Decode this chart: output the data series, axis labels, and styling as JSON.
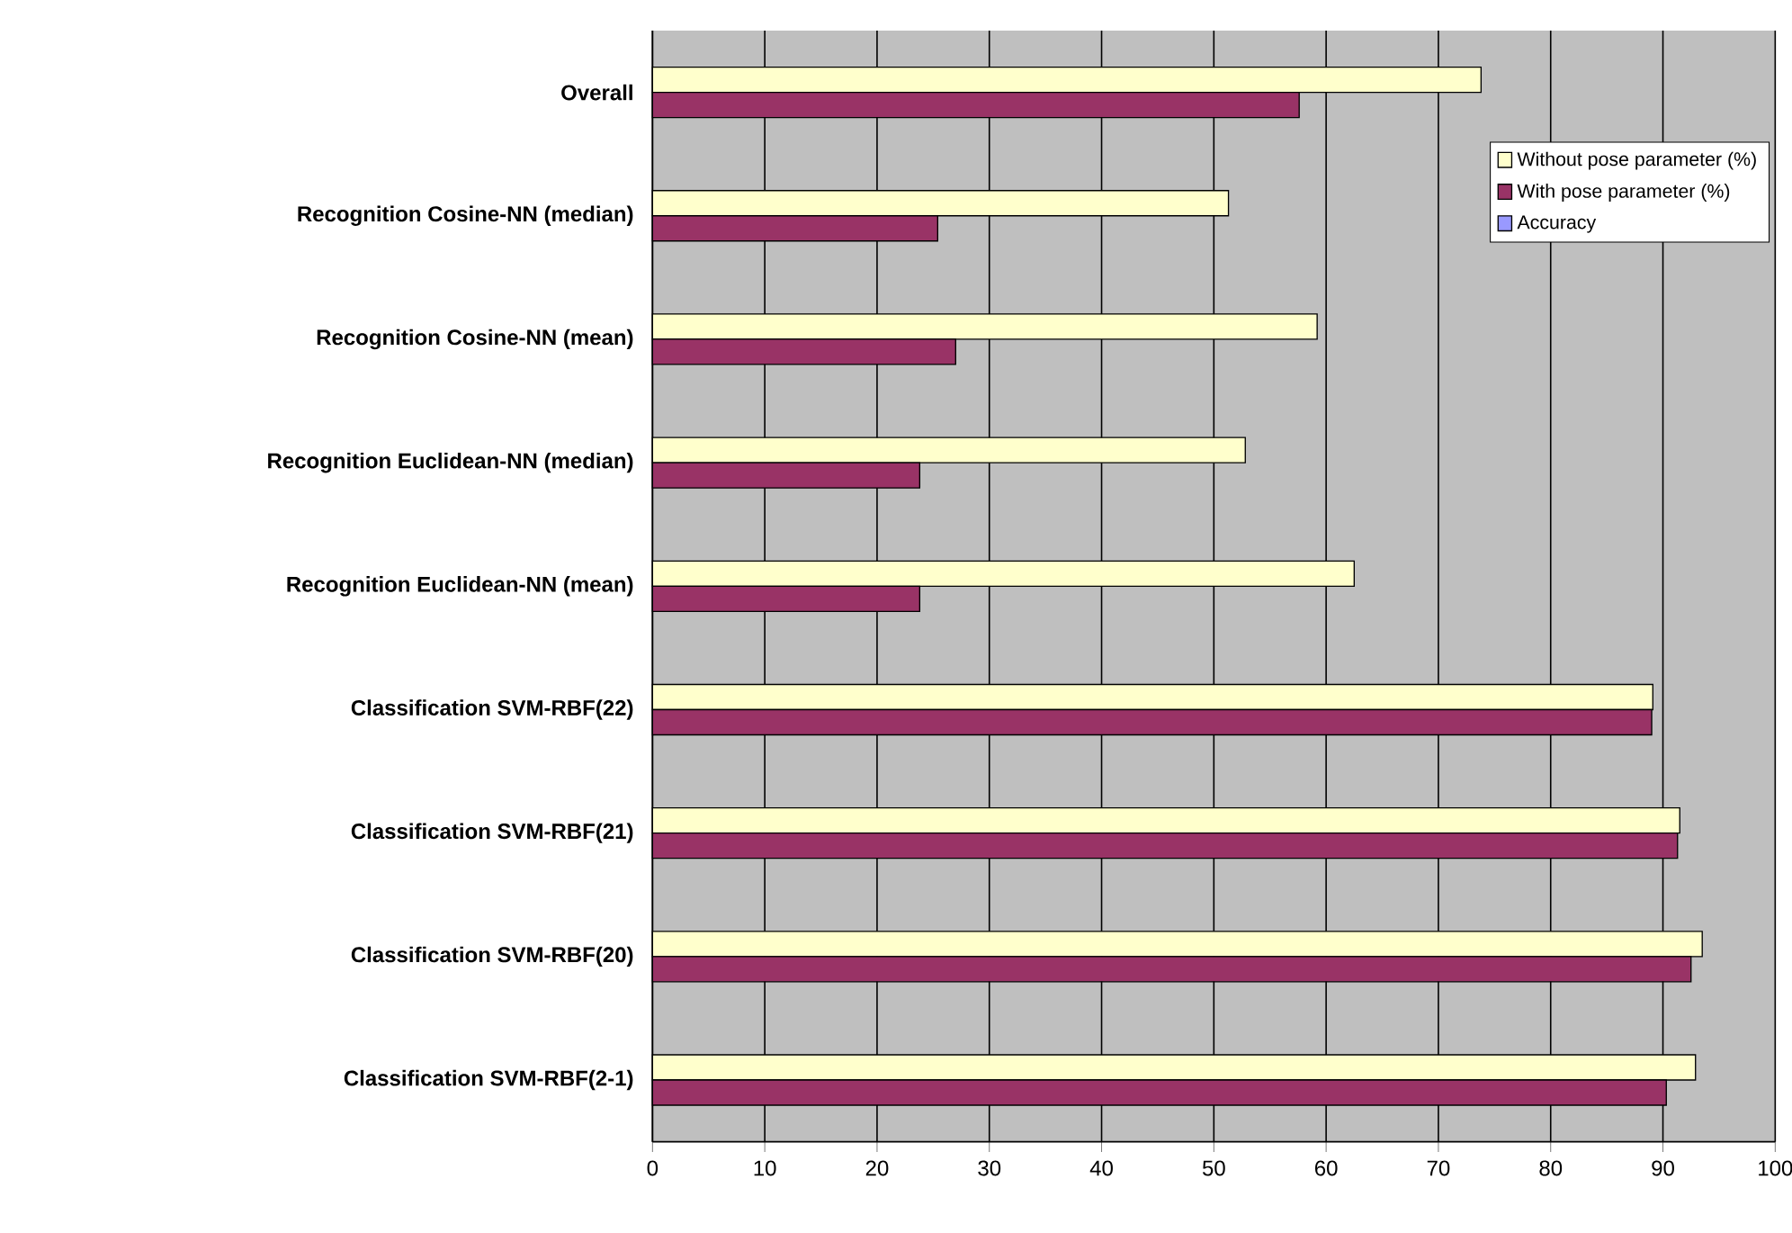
{
  "chart_data": {
    "type": "bar",
    "orientation": "horizontal",
    "categories": [
      "Overall",
      "Recognition Cosine-NN (median)",
      "Recognition Cosine-NN (mean)",
      "Recognition Euclidean-NN (median)",
      "Recognition Euclidean-NN (mean)",
      "Classification SVM-RBF(22)",
      "Classification SVM-RBF(21)",
      "Classification SVM-RBF(20)",
      "Classification SVM-RBF(2-1)"
    ],
    "series": [
      {
        "name": "Without pose parameter (%)",
        "color": "#ffffcc",
        "values": [
          73.8,
          51.3,
          59.2,
          52.8,
          62.5,
          89.1,
          91.5,
          93.5,
          92.9
        ]
      },
      {
        "name": "With pose parameter (%)",
        "color": "#993366",
        "values": [
          57.6,
          25.4,
          27.0,
          23.8,
          23.8,
          89.0,
          91.3,
          92.5,
          90.3
        ]
      },
      {
        "name": "Accuracy",
        "color": "#9999ff",
        "values": [
          null,
          null,
          null,
          null,
          null,
          null,
          null,
          null,
          null
        ]
      }
    ],
    "xlim": [
      0,
      100
    ],
    "xticks": [
      0,
      10,
      20,
      30,
      40,
      50,
      60,
      70,
      80,
      90,
      100
    ],
    "grid": "x",
    "legend": "top right"
  }
}
